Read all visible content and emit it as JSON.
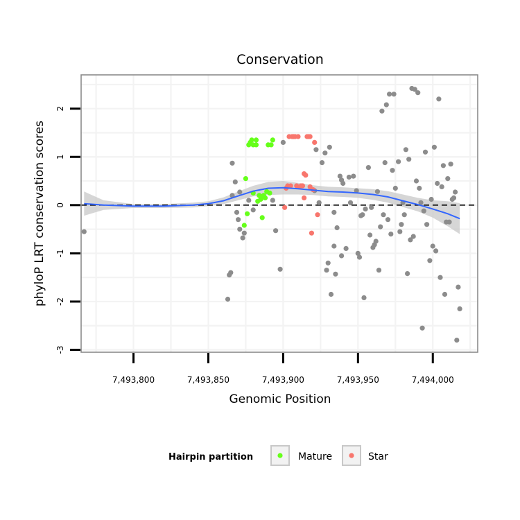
{
  "chart_data": {
    "type": "scatter",
    "title": "Conservation",
    "xlabel": "Genomic Position",
    "ylabel": "phyloP LRT conservation scores",
    "xlim": [
      7493765,
      7494030
    ],
    "ylim": [
      -3.05,
      2.7
    ],
    "x_ticks": [
      7493800,
      7493850,
      7493900,
      7493950,
      7494000
    ],
    "x_tick_labels": [
      "7,493,800",
      "7,493,850",
      "7,493,900",
      "7,493,950",
      "7,494,000"
    ],
    "y_ticks": [
      -3,
      -2,
      -1,
      0,
      1,
      2
    ],
    "y_tick_labels": [
      "-3",
      "-2",
      "-1",
      "0",
      "1",
      "2"
    ],
    "reference_line": {
      "y": 0,
      "style": "dashed"
    },
    "legend": {
      "title": "Hairpin partition",
      "position": "bottom",
      "entries": [
        {
          "label": "Mature",
          "color": "#66ff1a"
        },
        {
          "label": "Star",
          "color": "#f8766d"
        }
      ]
    },
    "colors": {
      "other": "#8c8c8c",
      "mature": "#66ff1a",
      "star": "#f8766d",
      "smooth_line": "#3366ff",
      "ribbon": "#c8c8c8"
    },
    "series": [
      {
        "name": "Other",
        "points": [
          [
            7493767,
            -0.55
          ],
          [
            7493863,
            -1.95
          ],
          [
            7493864,
            -1.45
          ],
          [
            7493865,
            -1.4
          ],
          [
            7493866,
            0.87
          ],
          [
            7493866,
            0.2
          ],
          [
            7493868,
            0.48
          ],
          [
            7493869,
            -0.15
          ],
          [
            7493870,
            -0.3
          ],
          [
            7493871,
            0.27
          ],
          [
            7493871,
            -0.5
          ],
          [
            7493873,
            -0.68
          ],
          [
            7493874,
            -0.58
          ],
          [
            7493877,
            0.1
          ],
          [
            7493880,
            -0.1
          ],
          [
            7493893,
            0.1
          ],
          [
            7493895,
            -0.53
          ],
          [
            7493898,
            -1.33
          ],
          [
            7493900,
            1.3
          ],
          [
            7493921,
            0.3
          ],
          [
            7493922,
            1.15
          ],
          [
            7493924,
            0.05
          ],
          [
            7493926,
            0.88
          ],
          [
            7493928,
            1.08
          ],
          [
            7493929,
            -1.35
          ],
          [
            7493930,
            -1.2
          ],
          [
            7493931,
            1.2
          ],
          [
            7493932,
            -1.85
          ],
          [
            7493934,
            -0.15
          ],
          [
            7493934,
            -0.85
          ],
          [
            7493935,
            -1.43
          ],
          [
            7493936,
            -0.47
          ],
          [
            7493938,
            0.6
          ],
          [
            7493939,
            0.52
          ],
          [
            7493939,
            -1.05
          ],
          [
            7493940,
            0.45
          ],
          [
            7493942,
            -0.9
          ],
          [
            7493944,
            0.58
          ],
          [
            7493945,
            0.05
          ],
          [
            7493947,
            0.6
          ],
          [
            7493949,
            0.3
          ],
          [
            7493950,
            -1.0
          ],
          [
            7493951,
            -1.08
          ],
          [
            7493952,
            -0.22
          ],
          [
            7493953,
            -0.2
          ],
          [
            7493954,
            -1.92
          ],
          [
            7493955,
            -0.08
          ],
          [
            7493957,
            0.78
          ],
          [
            7493958,
            -0.62
          ],
          [
            7493959,
            -0.05
          ],
          [
            7493960,
            -0.88
          ],
          [
            7493961,
            -0.82
          ],
          [
            7493962,
            -0.75
          ],
          [
            7493963,
            0.28
          ],
          [
            7493964,
            -1.35
          ],
          [
            7493965,
            -0.45
          ],
          [
            7493966,
            1.95
          ],
          [
            7493967,
            -0.2
          ],
          [
            7493968,
            0.88
          ],
          [
            7493969,
            2.08
          ],
          [
            7493970,
            -0.3
          ],
          [
            7493971,
            2.3
          ],
          [
            7493972,
            -0.6
          ],
          [
            7493973,
            0.72
          ],
          [
            7493974,
            2.3
          ],
          [
            7493975,
            0.35
          ],
          [
            7493977,
            0.9
          ],
          [
            7493978,
            -0.55
          ],
          [
            7493979,
            -0.4
          ],
          [
            7493980,
            0.05
          ],
          [
            7493981,
            -0.2
          ],
          [
            7493982,
            1.15
          ],
          [
            7493983,
            -1.42
          ],
          [
            7493984,
            0.95
          ],
          [
            7493985,
            -0.72
          ],
          [
            7493986,
            2.42
          ],
          [
            7493987,
            -0.65
          ],
          [
            7493988,
            2.4
          ],
          [
            7493989,
            0.5
          ],
          [
            7493990,
            2.33
          ],
          [
            7493991,
            0.35
          ],
          [
            7493992,
            0.05
          ],
          [
            7493993,
            -2.55
          ],
          [
            7493994,
            -0.12
          ],
          [
            7493995,
            1.1
          ],
          [
            7493996,
            -0.4
          ],
          [
            7493998,
            -1.15
          ],
          [
            7493999,
            0.12
          ],
          [
            7494000,
            -0.85
          ],
          [
            7494001,
            1.2
          ],
          [
            7494002,
            -0.95
          ],
          [
            7494003,
            0.45
          ],
          [
            7494004,
            2.2
          ],
          [
            7494005,
            -1.5
          ],
          [
            7494006,
            0.38
          ],
          [
            7494007,
            0.82
          ],
          [
            7494008,
            -1.85
          ],
          [
            7494009,
            -0.35
          ],
          [
            7494010,
            0.55
          ],
          [
            7494011,
            -0.35
          ],
          [
            7494012,
            0.85
          ],
          [
            7494013,
            0.12
          ],
          [
            7494014,
            0.15
          ],
          [
            7494015,
            0.27
          ],
          [
            7494016,
            -2.8
          ],
          [
            7494017,
            -1.7
          ],
          [
            7494018,
            -2.15
          ]
        ]
      },
      {
        "name": "Mature",
        "points": [
          [
            7493874,
            -0.42
          ],
          [
            7493875,
            0.55
          ],
          [
            7493876,
            -0.18
          ],
          [
            7493877,
            1.25
          ],
          [
            7493878,
            1.3
          ],
          [
            7493879,
            1.35
          ],
          [
            7493880,
            1.25
          ],
          [
            7493880,
            0.25
          ],
          [
            7493882,
            1.35
          ],
          [
            7493882,
            1.25
          ],
          [
            7493883,
            0.08
          ],
          [
            7493884,
            0.2
          ],
          [
            7493885,
            0.12
          ],
          [
            7493886,
            0.18
          ],
          [
            7493886,
            -0.26
          ],
          [
            7493887,
            0.2
          ],
          [
            7493888,
            0.15
          ],
          [
            7493889,
            0.28
          ],
          [
            7493890,
            1.25
          ],
          [
            7493891,
            0.25
          ],
          [
            7493892,
            1.25
          ],
          [
            7493893,
            1.35
          ]
        ]
      },
      {
        "name": "Star",
        "points": [
          [
            7493901,
            -0.05
          ],
          [
            7493902,
            0.35
          ],
          [
            7493903,
            0.4
          ],
          [
            7493904,
            1.42
          ],
          [
            7493905,
            0.4
          ],
          [
            7493906,
            1.42
          ],
          [
            7493907,
            1.42
          ],
          [
            7493908,
            1.42
          ],
          [
            7493909,
            0.4
          ],
          [
            7493910,
            1.42
          ],
          [
            7493911,
            0.38
          ],
          [
            7493912,
            0.4
          ],
          [
            7493913,
            0.4
          ],
          [
            7493914,
            0.65
          ],
          [
            7493914,
            0.15
          ],
          [
            7493915,
            0.62
          ],
          [
            7493916,
            1.42
          ],
          [
            7493917,
            1.42
          ],
          [
            7493918,
            1.42
          ],
          [
            7493918,
            0.38
          ],
          [
            7493919,
            -0.58
          ],
          [
            7493920,
            0.32
          ],
          [
            7493921,
            1.3
          ],
          [
            7493923,
            -0.2
          ]
        ]
      }
    ],
    "smooth": {
      "method": "loess",
      "x": [
        7493767,
        7493780,
        7493800,
        7493820,
        7493840,
        7493850,
        7493860,
        7493870,
        7493880,
        7493890,
        7493900,
        7493910,
        7493920,
        7493930,
        7493940,
        7493950,
        7493960,
        7493970,
        7493980,
        7493990,
        7494000,
        7494010,
        7494018
      ],
      "y": [
        0.03,
        0.0,
        -0.02,
        -0.02,
        0.0,
        0.03,
        0.09,
        0.19,
        0.29,
        0.35,
        0.36,
        0.34,
        0.31,
        0.28,
        0.27,
        0.25,
        0.22,
        0.17,
        0.09,
        0.01,
        -0.08,
        -0.18,
        -0.28
      ],
      "lower": [
        -0.22,
        -0.1,
        -0.06,
        -0.06,
        -0.05,
        -0.02,
        0.02,
        0.1,
        0.18,
        0.21,
        0.22,
        0.22,
        0.21,
        0.18,
        0.17,
        0.15,
        0.11,
        0.05,
        -0.04,
        -0.13,
        -0.26,
        -0.44,
        -0.6
      ],
      "upper": [
        0.28,
        0.1,
        0.02,
        0.02,
        0.05,
        0.08,
        0.16,
        0.28,
        0.4,
        0.48,
        0.5,
        0.46,
        0.41,
        0.38,
        0.37,
        0.35,
        0.33,
        0.29,
        0.22,
        0.15,
        0.1,
        0.08,
        0.04
      ]
    }
  }
}
